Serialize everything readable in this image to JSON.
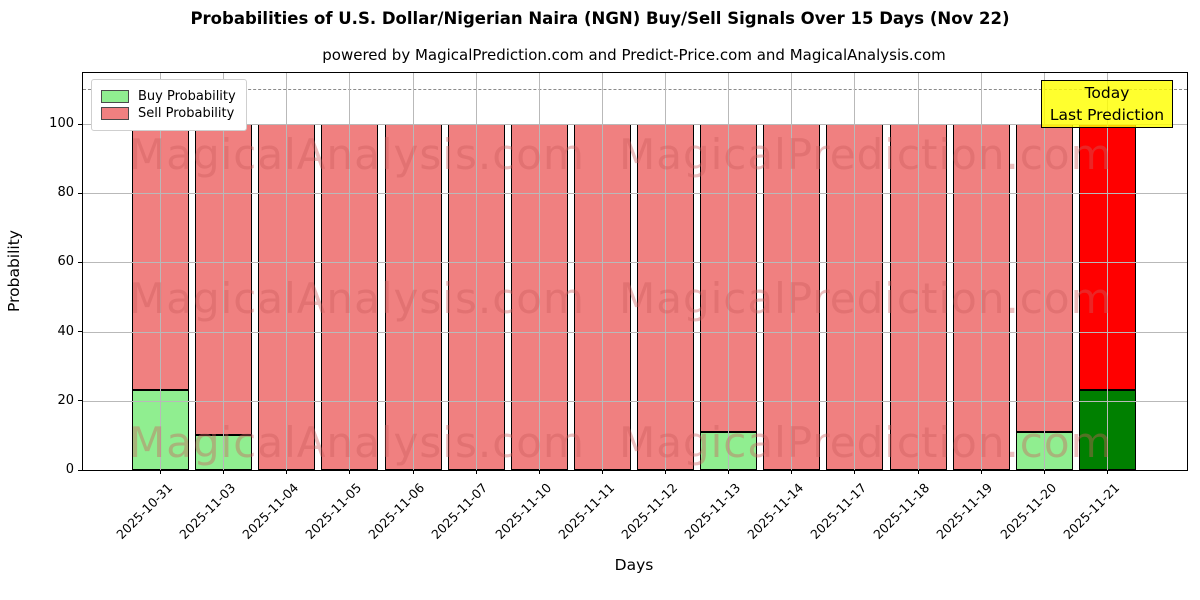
{
  "title": "Probabilities of U.S. Dollar/Nigerian Naira (NGN) Buy/Sell Signals Over 15 Days (Nov 22)",
  "subtitle": "powered by MagicalPrediction.com and Predict-Price.com and MagicalAnalysis.com",
  "legend": {
    "buy_label": "Buy Probability",
    "sell_label": "Sell Probability"
  },
  "annotation": {
    "line1": "Today",
    "line2": "Last Prediction"
  },
  "watermarks": [
    "MagicalAnalysis.com",
    "MagicalPrediction.com"
  ],
  "colors": {
    "buy": "#90EE90",
    "sell": "#F08080",
    "today_buy": "#008000",
    "today_sell": "#FF0000",
    "bar_edge": "#000000",
    "annotation_bg": "#FFFF00",
    "grid": "#b9b9b9"
  },
  "chart_data": {
    "type": "bar",
    "stacked": true,
    "title": "Probabilities of U.S. Dollar/Nigerian Naira (NGN) Buy/Sell Signals Over 15 Days (Nov 22)",
    "xlabel": "Days",
    "ylabel": "Probability",
    "categories": [
      "2025-10-31",
      "2025-11-03",
      "2025-11-04",
      "2025-11-05",
      "2025-11-06",
      "2025-11-07",
      "2025-11-10",
      "2025-11-11",
      "2025-11-12",
      "2025-11-13",
      "2025-11-14",
      "2025-11-17",
      "2025-11-18",
      "2025-11-19",
      "2025-11-20",
      "2025-11-21"
    ],
    "series": [
      {
        "name": "Buy Probability",
        "values": [
          23,
          10,
          0,
          0,
          0,
          0,
          0,
          0,
          0,
          11,
          0,
          0,
          0,
          0,
          11,
          23
        ]
      },
      {
        "name": "Sell Probability",
        "values": [
          77,
          90,
          100,
          100,
          100,
          100,
          100,
          100,
          100,
          89,
          100,
          100,
          100,
          100,
          89,
          77
        ]
      }
    ],
    "today_index": 15,
    "yticks": [
      0,
      20,
      40,
      60,
      80,
      100
    ],
    "ylim": [
      0,
      114.7
    ],
    "dashed_line_y": 110,
    "grid": true,
    "legend_position": "upper-left"
  }
}
